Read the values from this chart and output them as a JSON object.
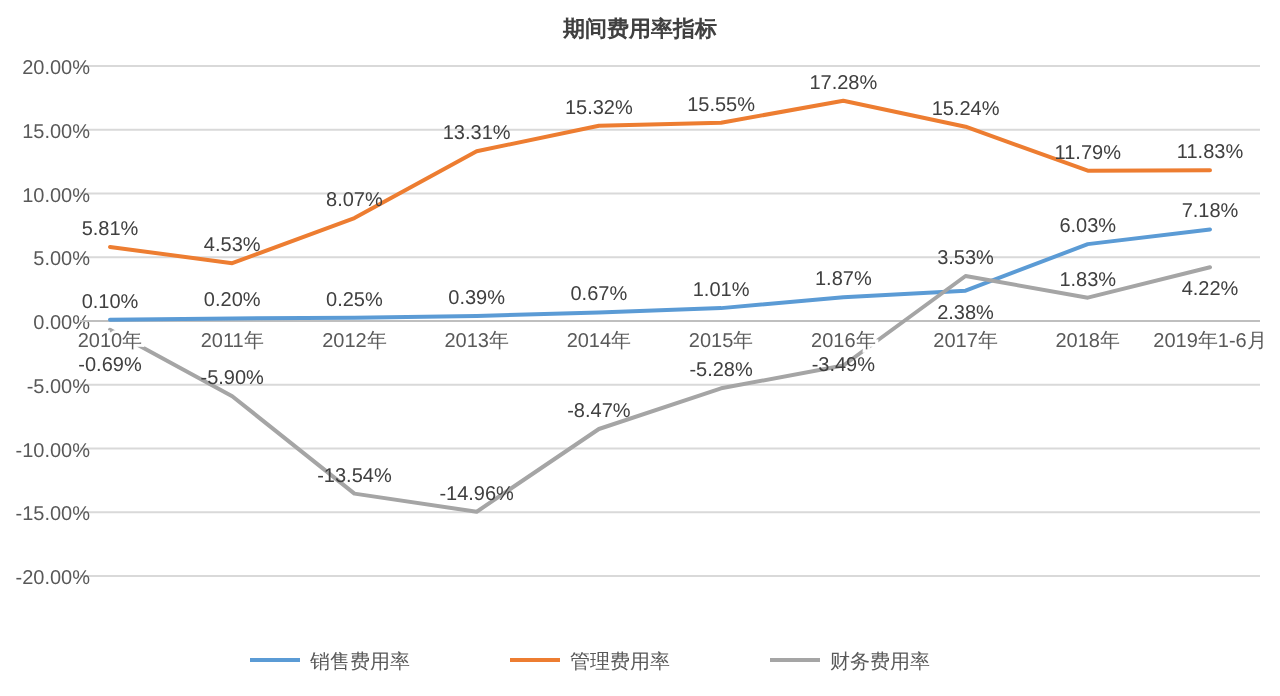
{
  "chart_data": {
    "type": "line",
    "title": "期间费用率指标",
    "categories": [
      "2010年",
      "2011年",
      "2012年",
      "2013年",
      "2014年",
      "2015年",
      "2016年",
      "2017年",
      "2018年",
      "2019年1-6月"
    ],
    "series": [
      {
        "name": "销售费用率",
        "color": "#5b9bd5",
        "values": [
          0.1,
          0.2,
          0.25,
          0.39,
          0.67,
          1.01,
          1.87,
          2.38,
          6.03,
          7.18
        ],
        "value_labels": [
          "0.10%",
          "0.20%",
          "0.25%",
          "0.39%",
          "0.67%",
          "1.01%",
          "1.87%",
          "2.38%",
          "6.03%",
          "7.18%"
        ]
      },
      {
        "name": "管理费用率",
        "color": "#ed7d31",
        "values": [
          5.81,
          4.53,
          8.07,
          13.31,
          15.32,
          15.55,
          17.28,
          15.24,
          11.79,
          11.83
        ],
        "value_labels": [
          "5.81%",
          "4.53%",
          "8.07%",
          "13.31%",
          "15.32%",
          "15.55%",
          "17.28%",
          "15.24%",
          "11.79%",
          "11.83%"
        ]
      },
      {
        "name": "财务费用率",
        "color": "#a5a5a5",
        "values": [
          -0.69,
          -5.9,
          -13.54,
          -14.96,
          -8.47,
          -5.28,
          -3.49,
          3.53,
          1.83,
          4.22
        ],
        "value_labels": [
          "-0.69%",
          "-5.90%",
          "-13.54%",
          "-14.96%",
          "-8.47%",
          "-5.28%",
          "-3.49%",
          "3.53%",
          "1.83%",
          "4.22%"
        ]
      }
    ],
    "ylim": [
      -20,
      20
    ],
    "yticks": [
      {
        "value": -20,
        "label": "-20.00%"
      },
      {
        "value": -15,
        "label": "-15.00%"
      },
      {
        "value": -10,
        "label": "-10.00%"
      },
      {
        "value": -5,
        "label": "-5.00%"
      },
      {
        "value": 0,
        "label": "0.00%"
      },
      {
        "value": 5,
        "label": "5.00%"
      },
      {
        "value": 10,
        "label": "10.00%"
      },
      {
        "value": 15,
        "label": "15.00%"
      },
      {
        "value": 20,
        "label": "20.00%"
      }
    ],
    "grid": "y",
    "legend": "bottom",
    "marker": "none",
    "line_style": "solid"
  }
}
